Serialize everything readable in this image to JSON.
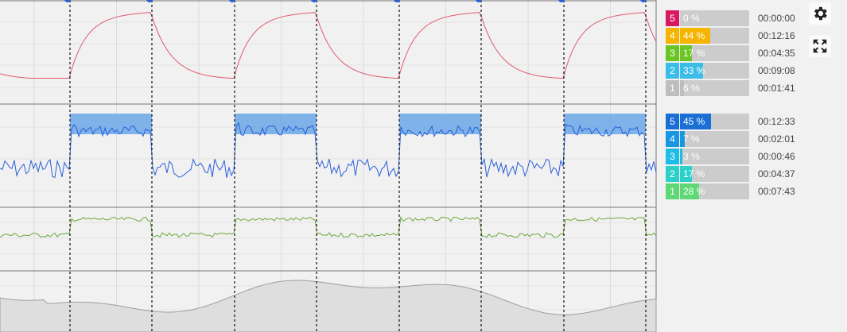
{
  "colors": {
    "power": "#e05a6e",
    "heartrate": "#2a5fd8",
    "cadence": "#6da83a",
    "elevation": "#bdbdbd",
    "interval_highlight": "#6aa7e6"
  },
  "toolbar": {
    "settings_icon": "gear-icon",
    "fullscreen_icon": "expand-icon"
  },
  "power_zones": [
    {
      "zone": "5",
      "percent_label": "0 %",
      "percent": 0,
      "time": "00:00:00",
      "color": "#d81b60"
    },
    {
      "zone": "4",
      "percent_label": "44 %",
      "percent": 44,
      "time": "00:12:16",
      "color": "#f4b400"
    },
    {
      "zone": "3",
      "percent_label": "17 %",
      "percent": 17,
      "time": "00:04:35",
      "color": "#6cc524"
    },
    {
      "zone": "2",
      "percent_label": "33 %",
      "percent": 33,
      "time": "00:09:08",
      "color": "#3cbde8"
    },
    {
      "zone": "1",
      "percent_label": "6 %",
      "percent": 6,
      "time": "00:01:41",
      "color": "#bdbdbd"
    }
  ],
  "hr_zones": [
    {
      "zone": "5",
      "percent_label": "45 %",
      "percent": 45,
      "time": "00:12:33",
      "color": "#1a6fd4"
    },
    {
      "zone": "4",
      "percent_label": "7 %",
      "percent": 7,
      "time": "00:02:01",
      "color": "#1897e0"
    },
    {
      "zone": "3",
      "percent_label": "3 %",
      "percent": 3,
      "time": "00:00:46",
      "color": "#1fbde6"
    },
    {
      "zone": "2",
      "percent_label": "17 %",
      "percent": 17,
      "time": "00:04:37",
      "color": "#2cd0c8"
    },
    {
      "zone": "1",
      "percent_label": "28 %",
      "percent": 28,
      "time": "00:07:43",
      "color": "#5ed874"
    }
  ]
}
